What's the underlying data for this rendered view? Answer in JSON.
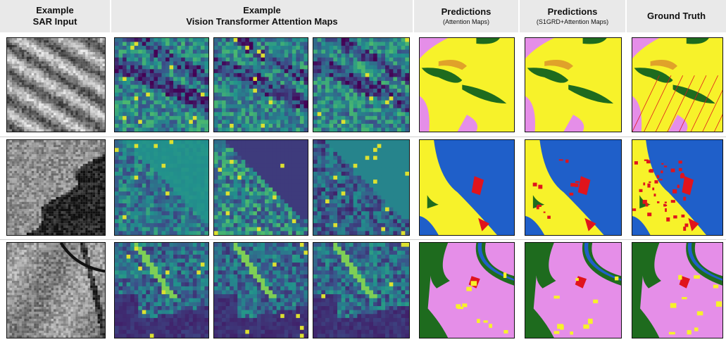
{
  "columns": {
    "sar": {
      "title": "Example",
      "subtitle": "SAR Input"
    },
    "vit": {
      "title": "Example",
      "subtitle": "Vision Transformer Attention Maps"
    },
    "pred_att": {
      "title": "Predictions",
      "subtitle": "(Attention Maps)"
    },
    "pred_s1": {
      "title": "Predictions",
      "subtitle": "(S1GRD+Attention Maps)"
    },
    "gt": {
      "title": "Ground Truth"
    }
  },
  "colors": {
    "header_bg": "#e9e9e9",
    "viridis_dark": "#3b1f6e",
    "viridis_mid": "#2a8c8a",
    "viridis_light": "#5ec962",
    "viridis_yellow": "#f5e524",
    "class_yellow": "#f7f22a",
    "class_green": "#1e6b1e",
    "class_pink": "#e58ee8",
    "class_blue": "#1f5fc9",
    "class_red": "#e0141c",
    "class_orange": "#e0a22a"
  },
  "rows": [
    {
      "name": "row-1",
      "scene": "ridges"
    },
    {
      "name": "row-2",
      "scene": "coast"
    },
    {
      "name": "row-3",
      "scene": "river"
    }
  ]
}
